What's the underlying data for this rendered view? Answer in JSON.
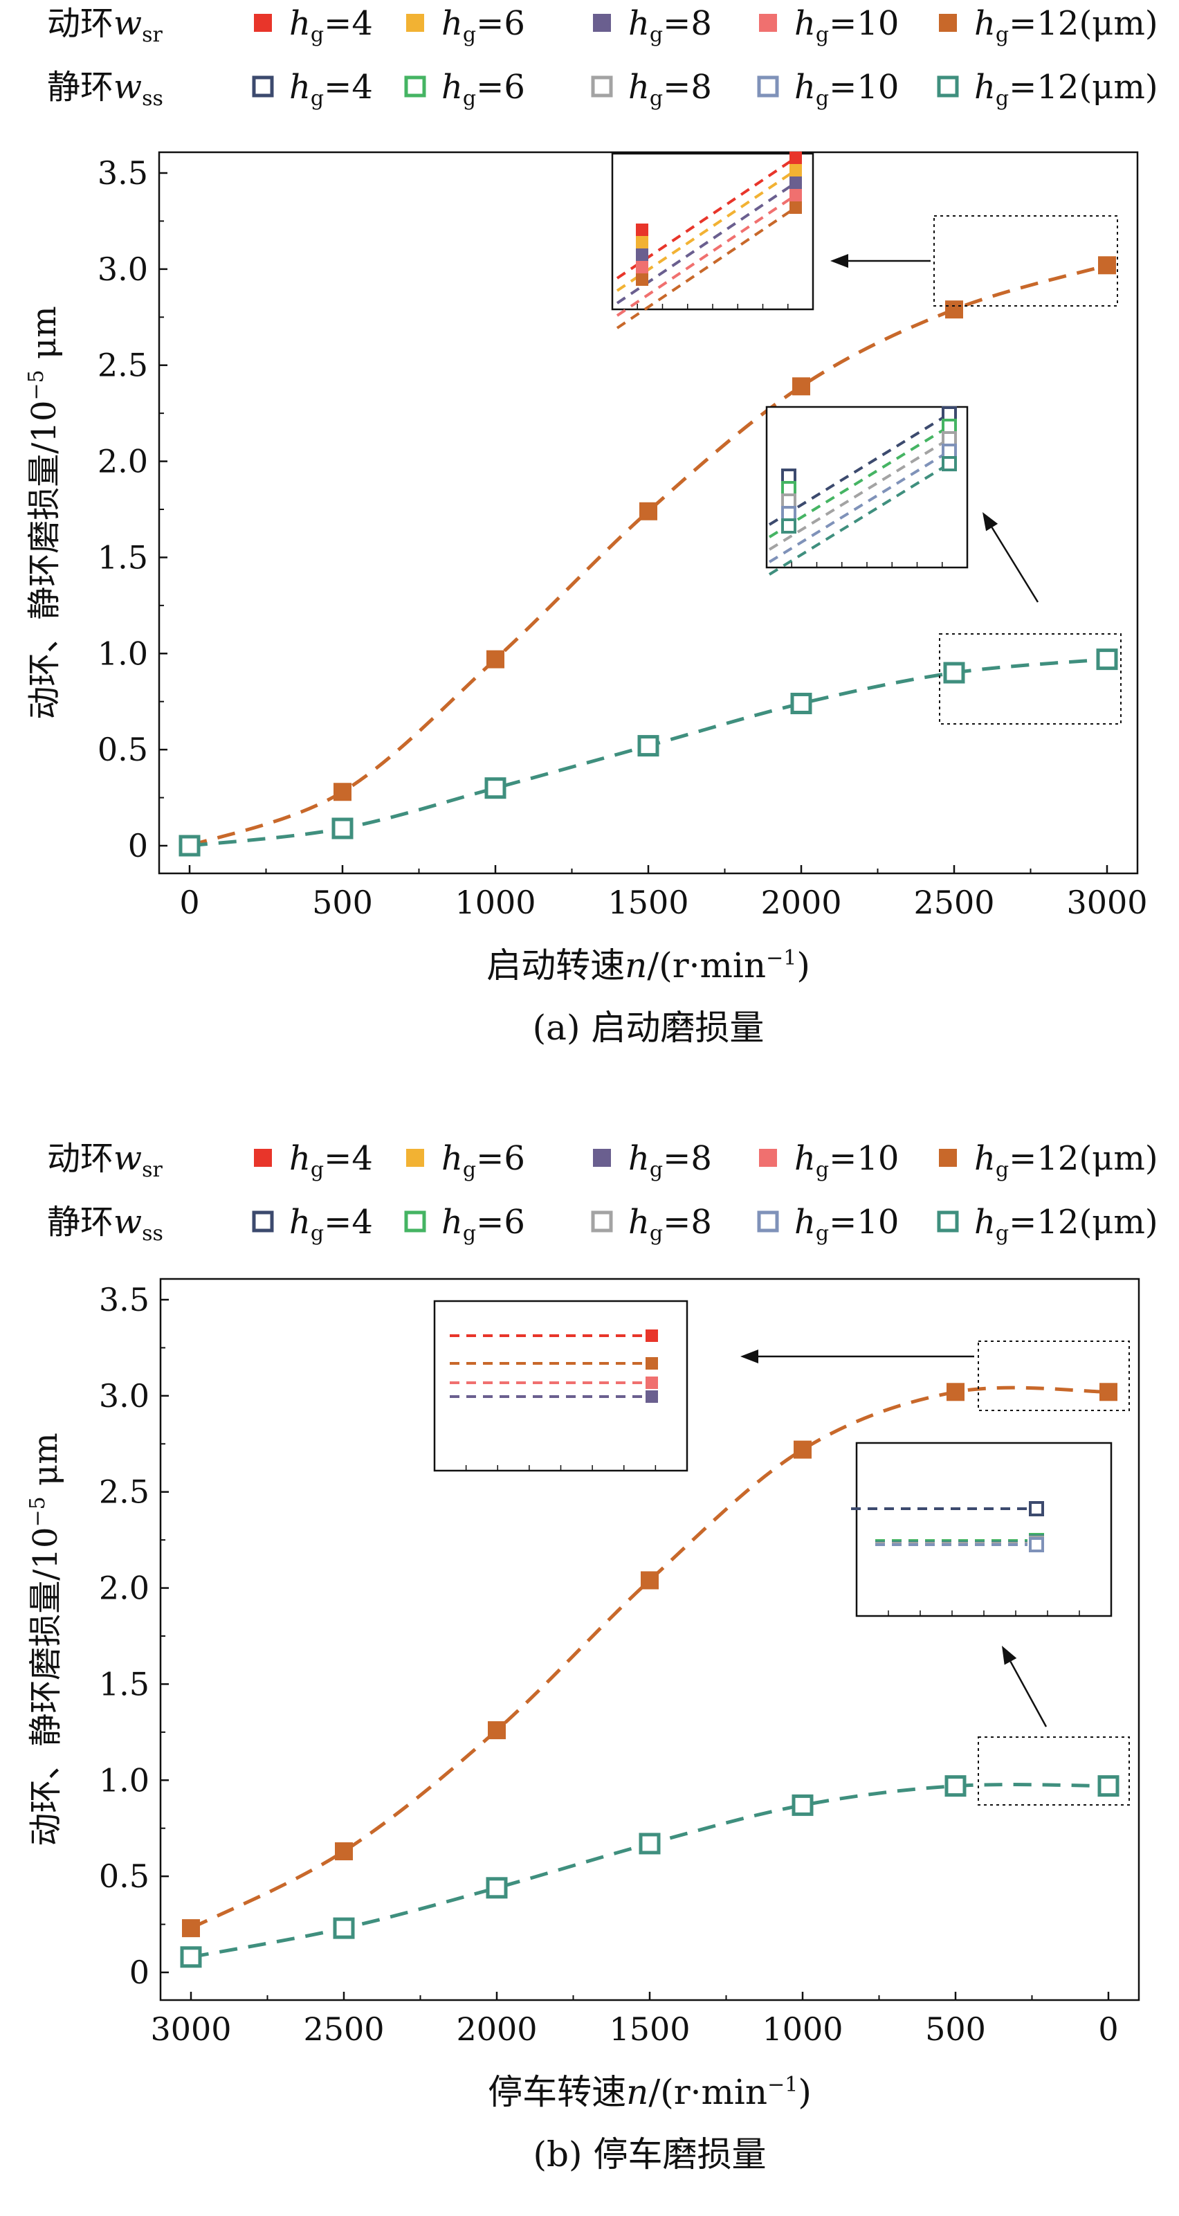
{
  "legend": {
    "rotating_label": "动环",
    "stationary_label": "静环",
    "rotating_var": "w",
    "rotating_sub": "sr",
    "stationary_var": "w",
    "stationary_sub": "ss",
    "hg_var": "h",
    "hg_sub": "g",
    "levels": [
      "=4",
      "=6",
      "=8",
      "=10",
      "=12(μm)"
    ],
    "rotating_colors": [
      "#e8352a",
      "#f2b233",
      "#6a5f8f",
      "#f0706f",
      "#c8682a"
    ],
    "stationary_colors": [
      "#3c4a6e",
      "#45b463",
      "#a3a3a3",
      "#7f92b9",
      "#3f8f7e"
    ]
  },
  "colors": {
    "rotating_main": "#c8682a",
    "stationary_main": "#3f8f7e"
  },
  "chart_data": [
    {
      "type": "line",
      "caption": "(a) 启动磨损量",
      "xlabel_text": "启动转速",
      "xlabel_var": "n",
      "xlabel_unit_pre": "/(r·min",
      "xlabel_unit_sup": "−1",
      "xlabel_unit_post": ")",
      "ylabel_text": "动环、静环磨损量/10",
      "ylabel_sup": "−5",
      "ylabel_unit": " μm",
      "x": [
        0,
        500,
        1000,
        1500,
        2000,
        2500,
        3000
      ],
      "xlim": [
        0,
        3000
      ],
      "ylim": [
        0,
        3.5
      ],
      "xreverse": false,
      "xticks": [
        "0",
        "500",
        "1000",
        "1500",
        "2000",
        "2500",
        "3000"
      ],
      "yticks": [
        "0",
        "0.5",
        "1.0",
        "1.5",
        "2.0",
        "2.5",
        "3.0",
        "3.5"
      ],
      "series": [
        {
          "role": "rotating",
          "values": [
            0,
            0.28,
            0.97,
            1.74,
            2.39,
            2.79,
            3.02
          ]
        },
        {
          "role": "stationary",
          "values": [
            0,
            0.09,
            0.3,
            0.52,
            0.74,
            0.9,
            0.97
          ]
        }
      ]
    },
    {
      "type": "line",
      "caption": "(b) 停车磨损量",
      "xlabel_text": "停车转速",
      "xlabel_var": "n",
      "xlabel_unit_pre": "/(r·min",
      "xlabel_unit_sup": "−1",
      "xlabel_unit_post": ")",
      "ylabel_text": "动环、静环磨损量/10",
      "ylabel_sup": "−5",
      "ylabel_unit": " μm",
      "x": [
        3000,
        2500,
        2000,
        1500,
        1000,
        500,
        0
      ],
      "xlim": [
        0,
        3000
      ],
      "ylim": [
        0,
        3.5
      ],
      "xreverse": true,
      "xticks": [
        "3000",
        "2500",
        "2000",
        "1500",
        "1000",
        "500",
        "0"
      ],
      "yticks": [
        "0",
        "0.5",
        "1.0",
        "1.5",
        "2.0",
        "2.5",
        "3.0",
        "3.5"
      ],
      "series": [
        {
          "role": "rotating",
          "values": [
            0.23,
            0.63,
            1.26,
            2.04,
            2.72,
            3.02,
            3.02
          ]
        },
        {
          "role": "stationary",
          "values": [
            0.08,
            0.23,
            0.44,
            0.67,
            0.87,
            0.97,
            0.97
          ]
        }
      ]
    }
  ]
}
